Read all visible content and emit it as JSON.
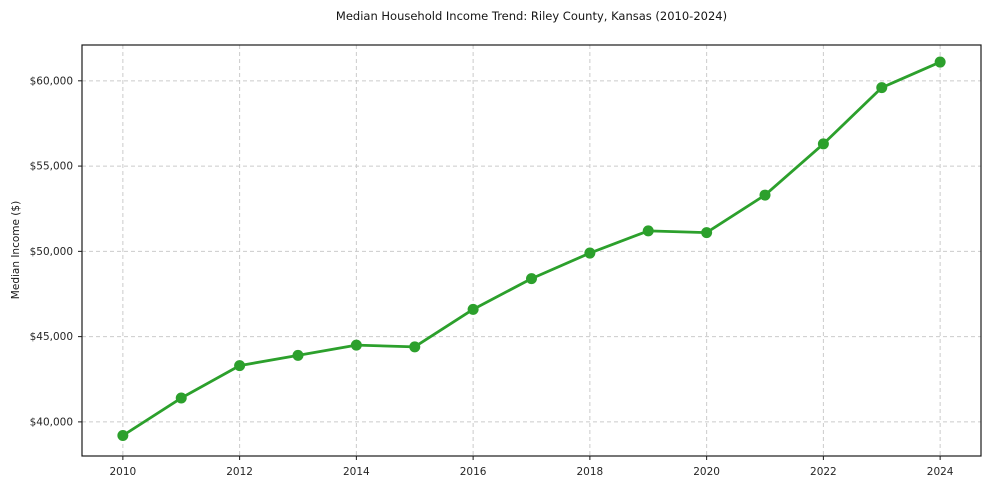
{
  "figure": {
    "background_color": "#ffffff",
    "line_color": "#2ca02c",
    "marker_color": "#2ca02c",
    "grid_color": "#cbcbcb",
    "spine_color": "#1a1a1a",
    "tick_color": "#1a1a1a",
    "text_color": "#262626"
  },
  "chart_data": {
    "type": "line",
    "title": "Median Household Income Trend: Riley County, Kansas (2010-2024)",
    "xlabel": "",
    "ylabel": "Median Income ($)",
    "series_name": "Median household income",
    "x": [
      2010,
      2011,
      2012,
      2013,
      2014,
      2015,
      2016,
      2017,
      2018,
      2019,
      2020,
      2021,
      2022,
      2023,
      2024
    ],
    "values": [
      39200,
      41400,
      43300,
      43900,
      44500,
      44400,
      46600,
      48400,
      49900,
      51200,
      51100,
      53300,
      56300,
      59600,
      61100
    ],
    "xticks": [
      2010,
      2012,
      2014,
      2016,
      2018,
      2020,
      2022,
      2024
    ],
    "xtick_labels": [
      "2010",
      "2012",
      "2014",
      "2016",
      "2018",
      "2020",
      "2022",
      "2024"
    ],
    "yticks": [
      40000,
      45000,
      50000,
      55000,
      60000
    ],
    "ytick_labels": [
      "$40,000",
      "$45,000",
      "$50,000",
      "$55,000",
      "$60,000"
    ],
    "xlim": [
      2009.3,
      2024.7
    ],
    "ylim": [
      38000,
      62100
    ],
    "grid": true,
    "grid_style": "dashed",
    "legend_position": "none",
    "marker": "circle"
  }
}
